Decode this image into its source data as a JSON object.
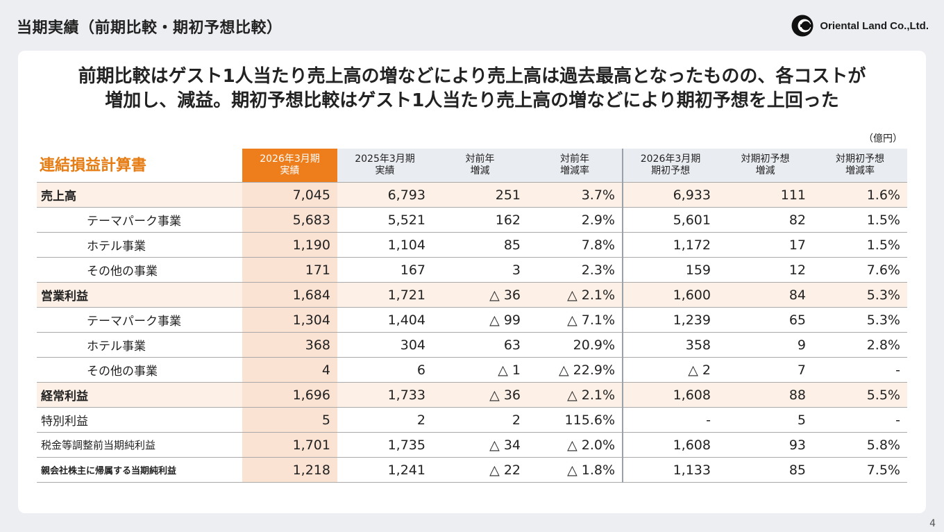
{
  "header": {
    "title": "当期実績（前期比較・期初予想比較）",
    "logo_text": "Oriental Land Co.,Ltd."
  },
  "headline": {
    "line1": "前期比較はゲスト1人当たり売上高の増などにより売上高は過去最高となったものの、各コストが",
    "line2": "増加し、減益。期初予想比較はゲスト1人当たり売上高の増などにより期初予想を上回った"
  },
  "unit": "（億円）",
  "table": {
    "title": "連結損益計算書",
    "columns": [
      {
        "line1": "2026年3月期",
        "line2": "実績"
      },
      {
        "line1": "2025年3月期",
        "line2": "実績"
      },
      {
        "line1": "対前年",
        "line2": "増減"
      },
      {
        "line1": "対前年",
        "line2": "増減率"
      },
      {
        "line1": "2026年3月期",
        "line2": "期初予想"
      },
      {
        "line1": "対期初予想",
        "line2": "増減"
      },
      {
        "line1": "対期初予想",
        "line2": "増減率"
      }
    ],
    "rows": [
      {
        "label": "売上高",
        "v": [
          "7,045",
          "6,793",
          "251",
          "3.7%",
          "6,933",
          "111",
          "1.6%"
        ]
      },
      {
        "label": "テーマパーク事業",
        "v": [
          "5,683",
          "5,521",
          "162",
          "2.9%",
          "5,601",
          "82",
          "1.5%"
        ]
      },
      {
        "label": "ホテル事業",
        "v": [
          "1,190",
          "1,104",
          "85",
          "7.8%",
          "1,172",
          "17",
          "1.5%"
        ]
      },
      {
        "label": "その他の事業",
        "v": [
          "171",
          "167",
          "3",
          "2.3%",
          "159",
          "12",
          "7.6%"
        ]
      },
      {
        "label": "営業利益",
        "v": [
          "1,684",
          "1,721",
          "△ 36",
          "△ 2.1%",
          "1,600",
          "84",
          "5.3%"
        ]
      },
      {
        "label": "テーマパーク事業",
        "v": [
          "1,304",
          "1,404",
          "△ 99",
          "△ 7.1%",
          "1,239",
          "65",
          "5.3%"
        ]
      },
      {
        "label": "ホテル事業",
        "v": [
          "368",
          "304",
          "63",
          "20.9%",
          "358",
          "9",
          "2.8%"
        ]
      },
      {
        "label": "その他の事業",
        "v": [
          "4",
          "6",
          "△ 1",
          "△ 22.9%",
          "△ 2",
          "7",
          "-"
        ]
      },
      {
        "label": "経常利益",
        "v": [
          "1,696",
          "1,733",
          "△ 36",
          "△ 2.1%",
          "1,608",
          "88",
          "5.5%"
        ]
      },
      {
        "label": "特別利益",
        "v": [
          "5",
          "2",
          "2",
          "115.6%",
          "-",
          "5",
          "-"
        ]
      },
      {
        "label": "税金等調整前当期純利益",
        "v": [
          "1,701",
          "1,735",
          "△ 34",
          "△ 2.0%",
          "1,608",
          "93",
          "5.8%"
        ]
      },
      {
        "label": "親会社株主に帰属する当期純利益",
        "v": [
          "1,218",
          "1,241",
          "△ 22",
          "△ 1.8%",
          "1,133",
          "85",
          "7.5%"
        ]
      }
    ]
  },
  "page_number": "4",
  "colors": {
    "accent": "#ee7d1c",
    "title_orange": "#e57c14",
    "highlight_fill": "#fbe3d3",
    "major_row_fill": "#fdf0e6"
  }
}
